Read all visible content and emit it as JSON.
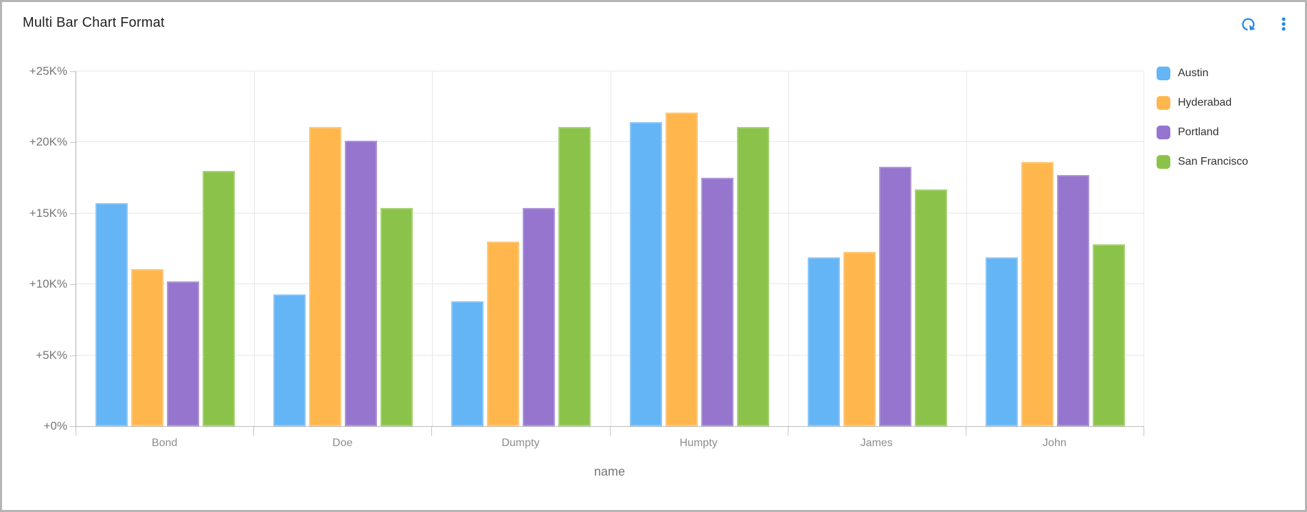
{
  "header": {
    "title": "Multi Bar Chart Format"
  },
  "toolbar": {
    "refresh_icon": "refresh",
    "menu_icon": "more-vert",
    "icon_color": "#1e88e5"
  },
  "chart_data": {
    "type": "bar",
    "categories": [
      "Bond",
      "Doe",
      "Dumpty",
      "Humpty",
      "James",
      "John"
    ],
    "series": [
      {
        "name": "Austin",
        "color": "#64b5f6",
        "values": [
          15700,
          9300,
          8800,
          21400,
          11900,
          11900
        ]
      },
      {
        "name": "Hyderabad",
        "color": "#ffb74d",
        "values": [
          11100,
          21100,
          13000,
          22100,
          12300,
          18600
        ]
      },
      {
        "name": "Portland",
        "color": "#9575cd",
        "values": [
          10200,
          20100,
          15400,
          17500,
          18300,
          17700
        ]
      },
      {
        "name": "San Francisco",
        "color": "#8bc34a",
        "values": [
          18000,
          15400,
          21100,
          21100,
          16700,
          12800
        ]
      }
    ],
    "title": "Multi Bar Chart Format",
    "xlabel": "name",
    "ylabel": "",
    "ylim": [
      0,
      25000
    ],
    "ytick_step": 5000,
    "ytick_labels": [
      "+0%",
      "+5K%",
      "+10K%",
      "+15K%",
      "+20K%",
      "+25K%"
    ],
    "grid": true,
    "legend_position": "right"
  }
}
